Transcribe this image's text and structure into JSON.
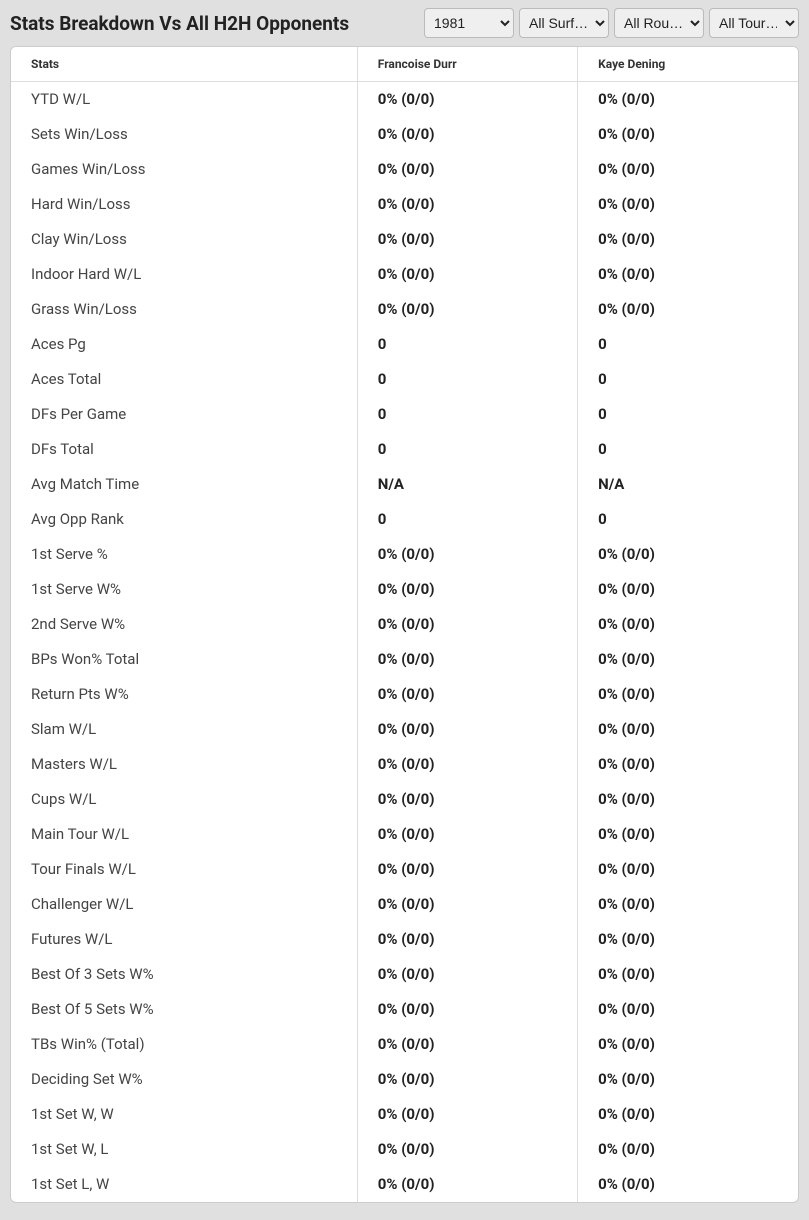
{
  "header": {
    "title": "Stats Breakdown Vs All H2H Opponents",
    "filters": {
      "year": {
        "selected": "1981",
        "options": [
          "1981"
        ]
      },
      "surface": {
        "selected": "All Surf…",
        "options": [
          "All Surf…"
        ]
      },
      "round": {
        "selected": "All Rou…",
        "options": [
          "All Rou…"
        ]
      },
      "tour": {
        "selected": "All Tour…",
        "options": [
          "All Tour…"
        ]
      }
    }
  },
  "table": {
    "columns": [
      "Stats",
      "Francoise Durr",
      "Kaye Dening"
    ],
    "rows": [
      [
        "YTD W/L",
        "0% (0/0)",
        "0% (0/0)"
      ],
      [
        "Sets Win/Loss",
        "0% (0/0)",
        "0% (0/0)"
      ],
      [
        "Games Win/Loss",
        "0% (0/0)",
        "0% (0/0)"
      ],
      [
        "Hard Win/Loss",
        "0% (0/0)",
        "0% (0/0)"
      ],
      [
        "Clay Win/Loss",
        "0% (0/0)",
        "0% (0/0)"
      ],
      [
        "Indoor Hard W/L",
        "0% (0/0)",
        "0% (0/0)"
      ],
      [
        "Grass Win/Loss",
        "0% (0/0)",
        "0% (0/0)"
      ],
      [
        "Aces Pg",
        "0",
        "0"
      ],
      [
        "Aces Total",
        "0",
        "0"
      ],
      [
        "DFs Per Game",
        "0",
        "0"
      ],
      [
        "DFs Total",
        "0",
        "0"
      ],
      [
        "Avg Match Time",
        "N/A",
        "N/A"
      ],
      [
        "Avg Opp Rank",
        "0",
        "0"
      ],
      [
        "1st Serve %",
        "0% (0/0)",
        "0% (0/0)"
      ],
      [
        "1st Serve W%",
        "0% (0/0)",
        "0% (0/0)"
      ],
      [
        "2nd Serve W%",
        "0% (0/0)",
        "0% (0/0)"
      ],
      [
        "BPs Won% Total",
        "0% (0/0)",
        "0% (0/0)"
      ],
      [
        "Return Pts W%",
        "0% (0/0)",
        "0% (0/0)"
      ],
      [
        "Slam W/L",
        "0% (0/0)",
        "0% (0/0)"
      ],
      [
        "Masters W/L",
        "0% (0/0)",
        "0% (0/0)"
      ],
      [
        "Cups W/L",
        "0% (0/0)",
        "0% (0/0)"
      ],
      [
        "Main Tour W/L",
        "0% (0/0)",
        "0% (0/0)"
      ],
      [
        "Tour Finals W/L",
        "0% (0/0)",
        "0% (0/0)"
      ],
      [
        "Challenger W/L",
        "0% (0/0)",
        "0% (0/0)"
      ],
      [
        "Futures W/L",
        "0% (0/0)",
        "0% (0/0)"
      ],
      [
        "Best Of 3 Sets W%",
        "0% (0/0)",
        "0% (0/0)"
      ],
      [
        "Best Of 5 Sets W%",
        "0% (0/0)",
        "0% (0/0)"
      ],
      [
        "TBs Win% (Total)",
        "0% (0/0)",
        "0% (0/0)"
      ],
      [
        "Deciding Set W%",
        "0% (0/0)",
        "0% (0/0)"
      ],
      [
        "1st Set W, W",
        "0% (0/0)",
        "0% (0/0)"
      ],
      [
        "1st Set W, L",
        "0% (0/0)",
        "0% (0/0)"
      ],
      [
        "1st Set L, W",
        "0% (0/0)",
        "0% (0/0)"
      ]
    ]
  },
  "colors": {
    "page_bg": "#e0e0e0",
    "table_bg": "#ffffff",
    "border": "#ddd",
    "text_primary": "#222",
    "text_secondary": "#444"
  }
}
